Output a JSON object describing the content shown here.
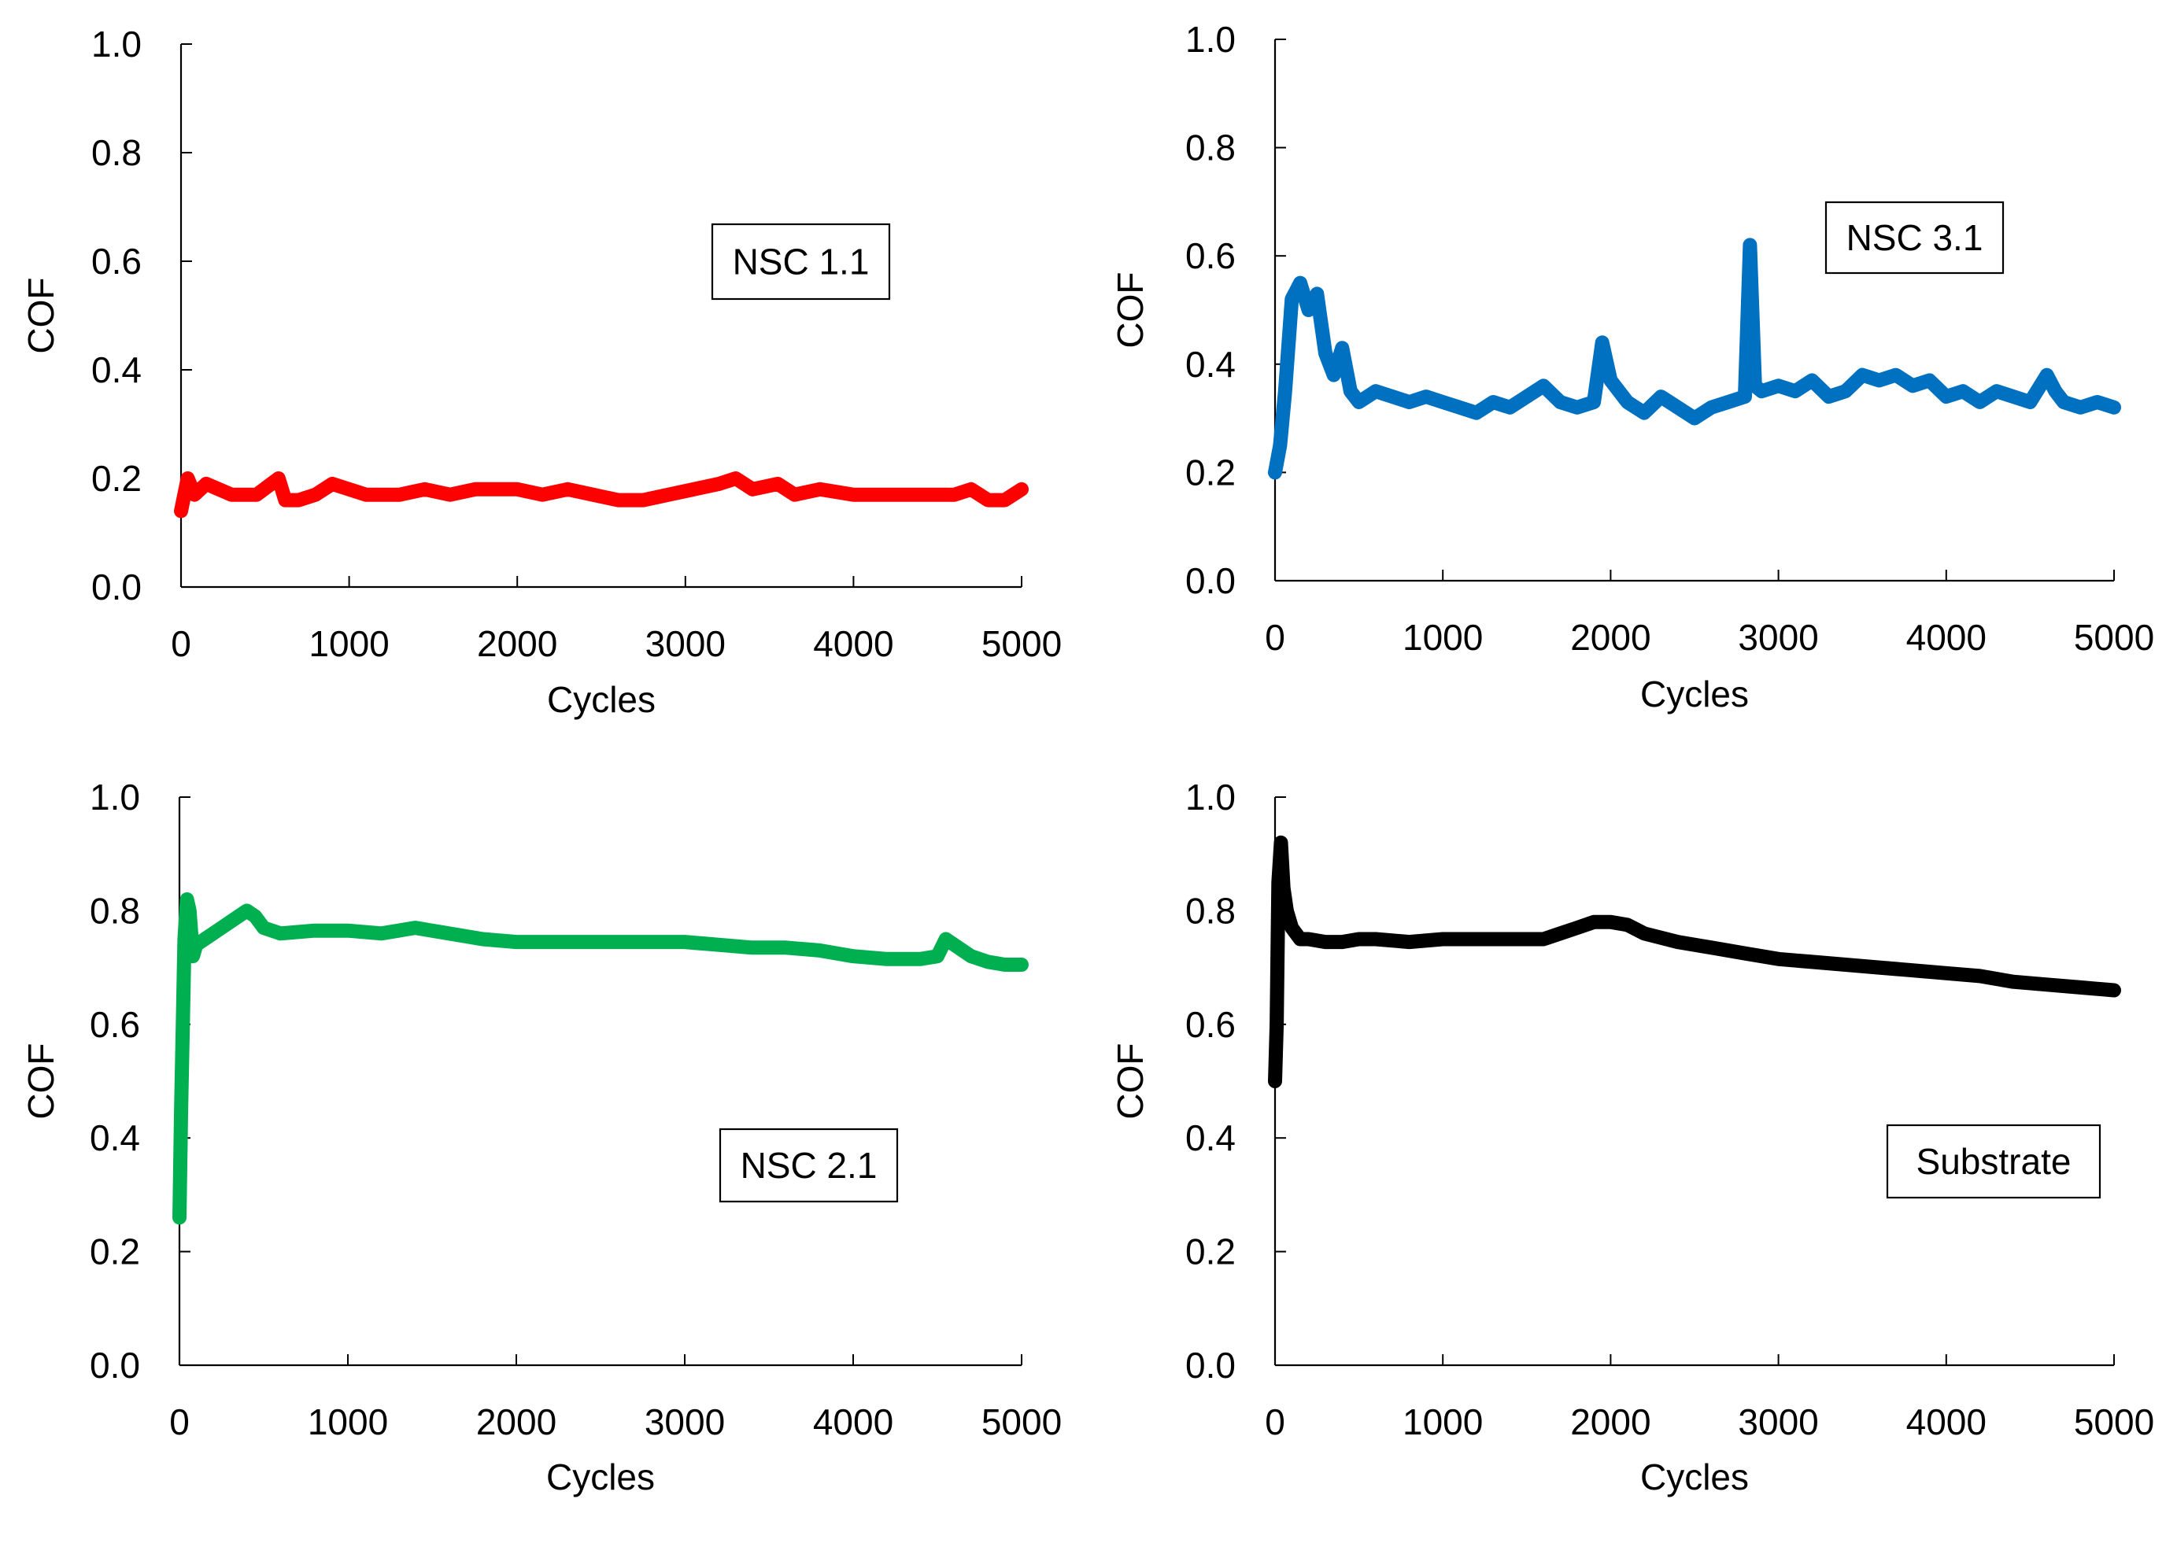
{
  "chart_data": [
    {
      "type": "line",
      "title": "",
      "label": "NSC 1.1",
      "color": "#ff0000",
      "xlabel": "Cycles",
      "ylabel": "COF",
      "xlim": [
        0,
        5000
      ],
      "ylim": [
        0.0,
        1.0
      ],
      "xticks": [
        0,
        1000,
        2000,
        3000,
        4000,
        5000
      ],
      "yticks": [
        "0.0",
        "0.2",
        "0.4",
        "0.6",
        "0.8",
        "1.0"
      ],
      "series": [
        {
          "name": "NSC 1.1",
          "x": [
            0,
            40,
            80,
            150,
            300,
            450,
            580,
            620,
            700,
            800,
            900,
            1000,
            1100,
            1300,
            1450,
            1600,
            1750,
            1900,
            2000,
            2150,
            2300,
            2450,
            2600,
            2750,
            2900,
            3050,
            3200,
            3300,
            3400,
            3550,
            3650,
            3800,
            4000,
            4200,
            4400,
            4600,
            4700,
            4800,
            4900,
            5000
          ],
          "y": [
            0.14,
            0.2,
            0.17,
            0.19,
            0.17,
            0.17,
            0.2,
            0.16,
            0.16,
            0.17,
            0.19,
            0.18,
            0.17,
            0.17,
            0.18,
            0.17,
            0.18,
            0.18,
            0.18,
            0.17,
            0.18,
            0.17,
            0.16,
            0.16,
            0.17,
            0.18,
            0.19,
            0.2,
            0.18,
            0.19,
            0.17,
            0.18,
            0.17,
            0.17,
            0.17,
            0.17,
            0.18,
            0.16,
            0.16,
            0.18
          ]
        }
      ]
    },
    {
      "type": "line",
      "title": "",
      "label": "NSC 3.1",
      "color": "#0070c0",
      "xlabel": "Cycles",
      "ylabel": "COF",
      "xlim": [
        0,
        5000
      ],
      "ylim": [
        0.0,
        1.0
      ],
      "xticks": [
        0,
        1000,
        2000,
        3000,
        4000,
        5000
      ],
      "yticks": [
        "0.0",
        "0.2",
        "0.4",
        "0.6",
        "0.8",
        "1.0"
      ],
      "series": [
        {
          "name": "NSC 3.1",
          "x": [
            0,
            30,
            60,
            100,
            150,
            200,
            250,
            300,
            350,
            400,
            450,
            500,
            600,
            700,
            800,
            900,
            1000,
            1100,
            1200,
            1300,
            1400,
            1500,
            1600,
            1700,
            1800,
            1900,
            1950,
            2000,
            2100,
            2200,
            2300,
            2400,
            2500,
            2600,
            2700,
            2800,
            2830,
            2860,
            2900,
            3000,
            3100,
            3200,
            3300,
            3400,
            3500,
            3600,
            3700,
            3800,
            3900,
            4000,
            4100,
            4200,
            4300,
            4400,
            4500,
            4600,
            4650,
            4700,
            4800,
            4900,
            5000
          ],
          "y": [
            0.2,
            0.25,
            0.35,
            0.52,
            0.55,
            0.5,
            0.53,
            0.42,
            0.38,
            0.43,
            0.35,
            0.33,
            0.35,
            0.34,
            0.33,
            0.34,
            0.33,
            0.32,
            0.31,
            0.33,
            0.32,
            0.34,
            0.36,
            0.33,
            0.32,
            0.33,
            0.44,
            0.37,
            0.33,
            0.31,
            0.34,
            0.32,
            0.3,
            0.32,
            0.33,
            0.34,
            0.62,
            0.36,
            0.35,
            0.36,
            0.35,
            0.37,
            0.34,
            0.35,
            0.38,
            0.37,
            0.38,
            0.36,
            0.37,
            0.34,
            0.35,
            0.33,
            0.35,
            0.34,
            0.33,
            0.38,
            0.35,
            0.33,
            0.32,
            0.33,
            0.32
          ]
        }
      ]
    },
    {
      "type": "line",
      "title": "",
      "label": "NSC 2.1",
      "color": "#00b050",
      "xlabel": "Cycles",
      "ylabel": "COF",
      "xlim": [
        0,
        5000
      ],
      "ylim": [
        0.0,
        1.0
      ],
      "xticks": [
        0,
        1000,
        2000,
        3000,
        4000,
        5000
      ],
      "yticks": [
        "0.0",
        "0.2",
        "0.4",
        "0.6",
        "0.8",
        "1.0"
      ],
      "series": [
        {
          "name": "NSC 2.1",
          "x": [
            0,
            10,
            20,
            30,
            45,
            60,
            80,
            100,
            150,
            200,
            300,
            400,
            450,
            500,
            600,
            800,
            1000,
            1200,
            1400,
            1500,
            1700,
            1800,
            2000,
            2200,
            2400,
            2600,
            2800,
            3000,
            3200,
            3400,
            3600,
            3800,
            4000,
            4200,
            4400,
            4500,
            4550,
            4600,
            4700,
            4800,
            4900,
            5000
          ],
          "y": [
            0.26,
            0.45,
            0.6,
            0.75,
            0.82,
            0.8,
            0.72,
            0.74,
            0.75,
            0.76,
            0.78,
            0.8,
            0.79,
            0.77,
            0.76,
            0.765,
            0.765,
            0.76,
            0.77,
            0.765,
            0.755,
            0.75,
            0.745,
            0.745,
            0.745,
            0.745,
            0.745,
            0.745,
            0.74,
            0.735,
            0.735,
            0.73,
            0.72,
            0.715,
            0.715,
            0.72,
            0.75,
            0.74,
            0.72,
            0.71,
            0.705,
            0.705
          ]
        }
      ]
    },
    {
      "type": "line",
      "title": "",
      "label": "Substrate",
      "color": "#000000",
      "xlabel": "Cycles",
      "ylabel": "COF",
      "xlim": [
        0,
        5000
      ],
      "ylim": [
        0.0,
        1.0
      ],
      "xticks": [
        0,
        1000,
        2000,
        3000,
        4000,
        5000
      ],
      "yticks": [
        "0.0",
        "0.2",
        "0.4",
        "0.6",
        "0.8",
        "1.0"
      ],
      "series": [
        {
          "name": "Substrate",
          "x": [
            0,
            10,
            20,
            35,
            50,
            70,
            100,
            150,
            200,
            300,
            400,
            500,
            600,
            800,
            1000,
            1200,
            1400,
            1600,
            1700,
            1800,
            1900,
            2000,
            2100,
            2200,
            2400,
            2600,
            2800,
            3000,
            3200,
            3400,
            3600,
            3800,
            4000,
            4200,
            4400,
            4600,
            4800,
            5000
          ],
          "y": [
            0.5,
            0.6,
            0.85,
            0.92,
            0.84,
            0.8,
            0.77,
            0.75,
            0.75,
            0.745,
            0.745,
            0.75,
            0.75,
            0.745,
            0.75,
            0.75,
            0.75,
            0.75,
            0.76,
            0.77,
            0.78,
            0.78,
            0.775,
            0.76,
            0.745,
            0.735,
            0.725,
            0.715,
            0.71,
            0.705,
            0.7,
            0.695,
            0.69,
            0.685,
            0.675,
            0.67,
            0.665,
            0.66
          ]
        }
      ]
    }
  ]
}
